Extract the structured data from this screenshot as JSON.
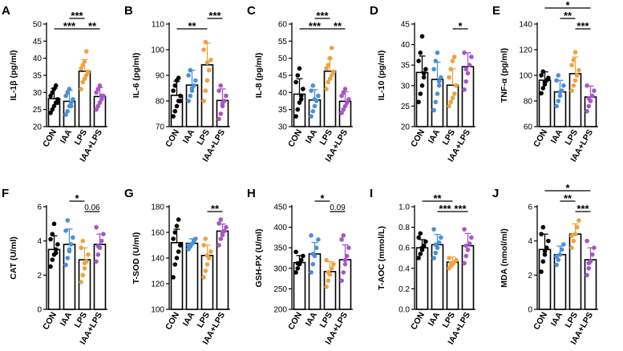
{
  "colors": {
    "CON": "#000000",
    "IAA": "#4a90d9",
    "LPS": "#f0a23e",
    "IAA+LPS": "#a855c8",
    "axis": "#000000"
  },
  "chart_data": [
    {
      "type": "bar",
      "label": "A",
      "ylabel": "IL-1β (pg/ml)",
      "ylim": [
        20,
        50
      ],
      "ticks": [
        20,
        25,
        30,
        35,
        40,
        45,
        50
      ],
      "categories": [
        "CON",
        "IAA",
        "LPS",
        "IAA+LPS"
      ],
      "values": [
        28.2,
        27.4,
        36.2,
        28.8
      ],
      "errors": [
        3.0,
        3.2,
        3.4,
        2.6
      ],
      "points": [
        [
          24,
          25,
          26,
          27,
          28,
          29,
          30,
          31,
          32,
          27
        ],
        [
          23.5,
          24.5,
          26,
          27,
          28,
          29,
          30,
          31,
          26
        ],
        [
          31,
          33,
          34,
          35,
          36,
          37,
          38,
          39,
          42,
          36
        ],
        [
          25,
          26,
          27,
          28,
          29,
          30,
          31,
          32,
          29
        ]
      ],
      "significance": [
        {
          "from": 0,
          "to": 2,
          "label": "***",
          "level": 0
        },
        {
          "from": 1,
          "to": 2,
          "label": "***",
          "level": 1
        },
        {
          "from": 2,
          "to": 3,
          "label": "**",
          "level": 0
        }
      ]
    },
    {
      "type": "bar",
      "label": "B",
      "ylabel": "IL-6 (pg/ml)",
      "ylim": [
        70,
        110
      ],
      "ticks": [
        70,
        80,
        90,
        100,
        110
      ],
      "categories": [
        "CON",
        "IAA",
        "LPS",
        "IAA+LPS"
      ],
      "values": [
        82.2,
        86.2,
        94.1,
        80.2
      ],
      "errors": [
        5.5,
        5.8,
        8.5,
        4.5
      ],
      "points": [
        [
          74,
          76,
          78,
          80,
          82,
          84,
          86,
          88,
          89,
          80
        ],
        [
          80,
          82,
          84,
          86,
          88,
          90,
          92,
          85
        ],
        [
          80,
          84,
          88,
          92,
          96,
          100,
          103,
          95
        ],
        [
          73,
          75,
          78,
          80,
          82,
          84,
          86,
          79
        ]
      ],
      "significance": [
        {
          "from": 0,
          "to": 2,
          "label": "**",
          "level": 0
        },
        {
          "from": 2,
          "to": 3,
          "label": "***",
          "level": 1
        }
      ]
    },
    {
      "type": "bar",
      "label": "C",
      "ylabel": "IL-8 (pg/ml)",
      "ylim": [
        30,
        60
      ],
      "ticks": [
        30,
        35,
        40,
        45,
        50,
        55,
        60
      ],
      "categories": [
        "CON",
        "IAA",
        "LPS",
        "IAA+LPS"
      ],
      "values": [
        39.5,
        37.8,
        46.2,
        37.4
      ],
      "errors": [
        4.5,
        3.0,
        3.6,
        2.8
      ],
      "points": [
        [
          33,
          35,
          37,
          39,
          41,
          43,
          45,
          47,
          38
        ],
        [
          33,
          34.5,
          36,
          37.5,
          39,
          40.5,
          42,
          38
        ],
        [
          41,
          43,
          44,
          45,
          46,
          47,
          48,
          50,
          53,
          46
        ],
        [
          34,
          35,
          36,
          37,
          38,
          39,
          40,
          41,
          37
        ]
      ],
      "significance": [
        {
          "from": 0,
          "to": 2,
          "label": "***",
          "level": 0
        },
        {
          "from": 1,
          "to": 2,
          "label": "***",
          "level": 1
        },
        {
          "from": 2,
          "to": 3,
          "label": "**",
          "level": 0
        }
      ]
    },
    {
      "type": "bar",
      "label": "D",
      "ylabel": "IL-10 (pg/ml)",
      "ylim": [
        20,
        45
      ],
      "ticks": [
        20,
        25,
        30,
        35,
        40,
        45
      ],
      "categories": [
        "CON",
        "IAA",
        "LPS",
        "IAA+LPS"
      ],
      "values": [
        33.2,
        31.5,
        30.1,
        34.6
      ],
      "errors": [
        4.0,
        4.2,
        4.0,
        3.4
      ],
      "points": [
        [
          26,
          28,
          30,
          32,
          34,
          36,
          38,
          42,
          33
        ],
        [
          24,
          26,
          28,
          30,
          32,
          34,
          36,
          38,
          31
        ],
        [
          25,
          26,
          27,
          28,
          30,
          32,
          34,
          36,
          37,
          30
        ],
        [
          29,
          31,
          33,
          35,
          37,
          38,
          34
        ]
      ],
      "significance": [
        {
          "from": 2,
          "to": 3,
          "label": "*",
          "level": 0
        }
      ]
    },
    {
      "type": "bar",
      "label": "E",
      "ylabel": "TNF-α (pg/ml)",
      "ylim": [
        60,
        140
      ],
      "ticks": [
        60,
        80,
        100,
        120,
        140
      ],
      "categories": [
        "CON",
        "IAA",
        "LPS",
        "IAA+LPS"
      ],
      "values": [
        96.2,
        87.1,
        101.3,
        83.1
      ],
      "errors": [
        6.5,
        9.0,
        13.0,
        8.5
      ],
      "points": [
        [
          86,
          90,
          93,
          96,
          98,
          100,
          103,
          95
        ],
        [
          76,
          80,
          84,
          88,
          92,
          96,
          100,
          87
        ],
        [
          88,
          92,
          96,
          100,
          104,
          108,
          112,
          118,
          100
        ],
        [
          72,
          76,
          80,
          84,
          88,
          92,
          82
        ]
      ],
      "significance": [
        {
          "from": 0,
          "to": 3,
          "label": "*",
          "level": 2
        },
        {
          "from": 1,
          "to": 2,
          "label": "**",
          "level": 1
        },
        {
          "from": 2,
          "to": 3,
          "label": "***",
          "level": 0
        }
      ]
    },
    {
      "type": "bar",
      "label": "F",
      "ylabel": "CAT (U/ml)",
      "ylim": [
        0,
        6
      ],
      "ticks": [
        0,
        2,
        4,
        6
      ],
      "categories": [
        "CON",
        "IAA",
        "LPS",
        "IAA+LPS"
      ],
      "values": [
        3.5,
        3.8,
        2.9,
        3.8
      ],
      "errors": [
        0.8,
        0.9,
        0.7,
        0.6
      ],
      "points": [
        [
          2.5,
          2.9,
          3.2,
          3.5,
          3.8,
          4.1,
          4.4,
          5.0,
          3.3
        ],
        [
          2.6,
          3.0,
          3.4,
          3.8,
          4.2,
          4.6,
          5.2,
          3.5
        ],
        [
          1.6,
          2.0,
          2.4,
          2.8,
          3.2,
          3.6,
          4.0,
          2.7
        ],
        [
          2.8,
          3.2,
          3.6,
          4.0,
          4.4,
          4.8,
          3.7
        ]
      ],
      "significance": [
        {
          "from": 1,
          "to": 2,
          "label": "*",
          "level": 1
        },
        {
          "from": 2,
          "to": 3,
          "label": "0.06",
          "level": 0
        }
      ]
    },
    {
      "type": "bar",
      "label": "G",
      "ylabel": "T-SOD (U/ml)",
      "ylim": [
        100,
        180
      ],
      "ticks": [
        100,
        120,
        140,
        160,
        180
      ],
      "categories": [
        "CON",
        "IAA",
        "LPS",
        "IAA+LPS"
      ],
      "values": [
        152.0,
        151.5,
        142.0,
        161.0
      ],
      "errors": [
        10.5,
        3.5,
        8.0,
        5.5
      ],
      "points": [
        [
          125,
          135,
          140,
          145,
          150,
          155,
          160,
          165,
          170,
          150
        ],
        [
          147,
          149,
          151,
          153,
          155,
          150
        ],
        [
          125,
          130,
          135,
          140,
          145,
          150,
          155,
          142
        ],
        [
          150,
          155,
          158,
          161,
          164,
          167,
          170,
          160
        ]
      ],
      "significance": [
        {
          "from": 2,
          "to": 3,
          "label": "**",
          "level": 0
        }
      ]
    },
    {
      "type": "bar",
      "label": "H",
      "ylabel": "GSH-PX (U/ml)",
      "ylim": [
        200,
        450
      ],
      "ticks": [
        200,
        250,
        300,
        350,
        400,
        450
      ],
      "categories": [
        "CON",
        "IAA",
        "LPS",
        "IAA+LPS"
      ],
      "values": [
        314,
        335,
        292,
        321
      ],
      "errors": [
        17,
        28,
        24,
        36
      ],
      "points": [
        [
          290,
          300,
          310,
          320,
          330,
          340,
          312
        ],
        [
          290,
          310,
          330,
          350,
          370,
          380,
          335
        ],
        [
          255,
          270,
          285,
          300,
          310,
          320,
          290
        ],
        [
          270,
          290,
          310,
          330,
          350,
          370,
          380,
          320
        ]
      ],
      "significance": [
        {
          "from": 1,
          "to": 2,
          "label": "*",
          "level": 1
        },
        {
          "from": 2,
          "to": 3,
          "label": "0.09",
          "level": 0
        }
      ]
    },
    {
      "type": "bar",
      "label": "I",
      "ylabel": "T-AOC (mmol/L)",
      "ylim": [
        0.0,
        1.0
      ],
      "ticks": [
        0.0,
        0.2,
        0.4,
        0.6,
        0.8,
        1.0
      ],
      "categories": [
        "CON",
        "IAA",
        "LPS",
        "IAA+LPS"
      ],
      "values": [
        0.6,
        0.63,
        0.46,
        0.62
      ],
      "errors": [
        0.08,
        0.1,
        0.05,
        0.12
      ],
      "points": [
        [
          0.5,
          0.54,
          0.58,
          0.62,
          0.66,
          0.7,
          0.74,
          0.6
        ],
        [
          0.5,
          0.55,
          0.6,
          0.65,
          0.7,
          0.78,
          0.63
        ],
        [
          0.4,
          0.42,
          0.44,
          0.46,
          0.48,
          0.5,
          0.45
        ],
        [
          0.45,
          0.52,
          0.58,
          0.64,
          0.7,
          0.78,
          0.62
        ]
      ],
      "significance": [
        {
          "from": 0,
          "to": 2,
          "label": "**",
          "level": 1
        },
        {
          "from": 1,
          "to": 2,
          "label": "***",
          "level": 0
        },
        {
          "from": 2,
          "to": 3,
          "label": "***",
          "level": 0
        }
      ]
    },
    {
      "type": "bar",
      "label": "J",
      "ylabel": "MDA (nmol/ml)",
      "ylim": [
        0,
        6
      ],
      "ticks": [
        0,
        2,
        4,
        6
      ],
      "categories": [
        "CON",
        "IAA",
        "LPS",
        "IAA+LPS"
      ],
      "values": [
        3.5,
        3.2,
        4.4,
        2.9
      ],
      "errors": [
        0.9,
        0.5,
        0.6,
        0.7
      ],
      "points": [
        [
          2.2,
          2.8,
          3.2,
          3.6,
          4.0,
          4.4,
          4.8,
          3.4
        ],
        [
          2.6,
          2.9,
          3.2,
          3.5,
          3.8,
          3.1
        ],
        [
          3.6,
          4.0,
          4.4,
          4.8,
          5.2,
          4.3
        ],
        [
          2.0,
          2.4,
          2.8,
          3.2,
          3.6,
          4.0,
          2.7
        ]
      ],
      "significance": [
        {
          "from": 0,
          "to": 3,
          "label": "*",
          "level": 2
        },
        {
          "from": 1,
          "to": 2,
          "label": "**",
          "level": 1
        },
        {
          "from": 2,
          "to": 3,
          "label": "***",
          "level": 0
        }
      ]
    }
  ]
}
